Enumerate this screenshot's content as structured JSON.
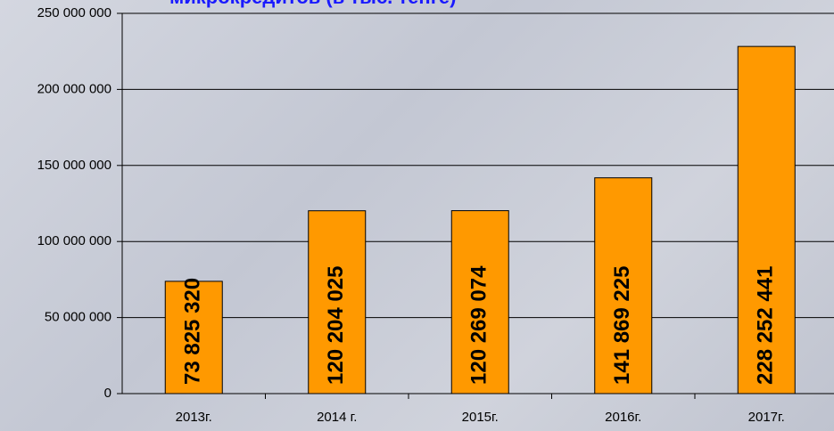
{
  "chart_data": {
    "type": "bar",
    "title": "микрокредитов (в тыс. тенге)",
    "categories": [
      "2013г.",
      "2014 г.",
      "2015г.",
      "2016г.",
      "2017г."
    ],
    "values": [
      73825320,
      120204025,
      120269074,
      141869225,
      228252441
    ],
    "value_labels": [
      "73 825 320",
      "120 204 025",
      "120 269 074",
      "141 869 225",
      "228 252 441"
    ],
    "color": "#ff9900",
    "ylim": [
      0,
      250000000
    ],
    "yticks": [
      0,
      {
        "value": 50000000,
        "label": "50 000 000"
      },
      {
        "value": 100000000,
        "label": "100 000 000"
      },
      {
        "value": 150000000,
        "label": "150 000 000"
      },
      {
        "value": 200000000,
        "label": "200 000 000"
      },
      {
        "value": 250000000,
        "label": "250 000 000"
      }
    ],
    "grid": true
  }
}
